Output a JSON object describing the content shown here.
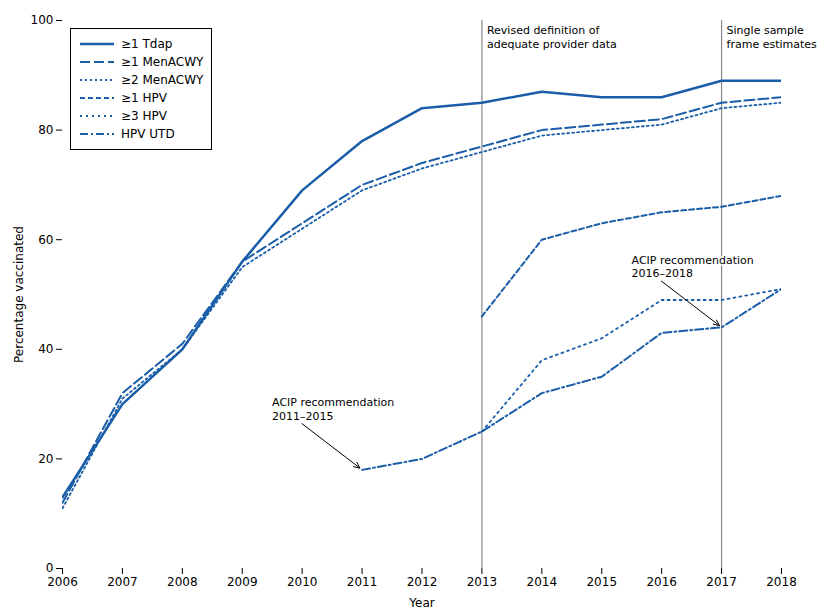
{
  "chart_data": {
    "type": "line",
    "xlabel": "Year",
    "ylabel": "Percentage vaccinated",
    "x": [
      2006,
      2007,
      2008,
      2009,
      2010,
      2011,
      2012,
      2013,
      2014,
      2015,
      2016,
      2017,
      2018
    ],
    "series": [
      {
        "name": "≥1 Tdap",
        "color": "#1a5da8",
        "line_style": "solid",
        "values": [
          13,
          30,
          40,
          56,
          69,
          78,
          84,
          85,
          87,
          86,
          86,
          89,
          89
        ]
      },
      {
        "name": "≥1 MenACWY",
        "color": "#1a5da8",
        "line_style": "long_dashed",
        "values": [
          12,
          32,
          41,
          56,
          63,
          70,
          74,
          77,
          80,
          81,
          82,
          85,
          86
        ]
      },
      {
        "name": "≥2 MenACWY",
        "color": "#1a5da8",
        "line_style": "dotted",
        "values": [
          11,
          31,
          40,
          55,
          62,
          69,
          73,
          76,
          79,
          80,
          81,
          84,
          85
        ]
      },
      {
        "name": "≥1 HPV",
        "color": "#1a5da8",
        "line_style": "dashed",
        "values": [
          null,
          null,
          null,
          null,
          null,
          null,
          null,
          46,
          60,
          63,
          65,
          66,
          68
        ]
      },
      {
        "name": "≥3 HPV",
        "color": "#1a5da8",
        "line_style": "loosely_dotted",
        "values": [
          null,
          null,
          null,
          null,
          null,
          null,
          null,
          25,
          38,
          42,
          49,
          49,
          51
        ]
      },
      {
        "name": "HPV UTD",
        "color": "#1a5da8",
        "line_style": "dash_dot",
        "values": [
          null,
          null,
          null,
          null,
          null,
          18,
          20,
          25,
          32,
          35,
          43,
          44,
          51
        ]
      }
    ],
    "xlim": [
      2006,
      2018
    ],
    "ylim": [
      0,
      100
    ],
    "xticks": [
      2006,
      2007,
      2008,
      2009,
      2010,
      2011,
      2012,
      2013,
      2014,
      2015,
      2016,
      2017,
      2018
    ],
    "yticks": [
      0,
      20,
      40,
      60,
      80,
      100
    ],
    "grid": false,
    "legend": "upper left",
    "vlines": [
      {
        "x": 2013,
        "label": "Revised definition of\nadequate provider data",
        "color": "#888888"
      },
      {
        "x": 2017,
        "label": "Single sample\nframe estimates",
        "color": "#888888"
      }
    ],
    "annotations": [
      {
        "text": "ACIP recommendation\n2011–2015",
        "x": 2011,
        "y": 18
      },
      {
        "text": "ACIP recommendation\n2016–2018",
        "x": 2017.0,
        "y": 44
      }
    ]
  }
}
